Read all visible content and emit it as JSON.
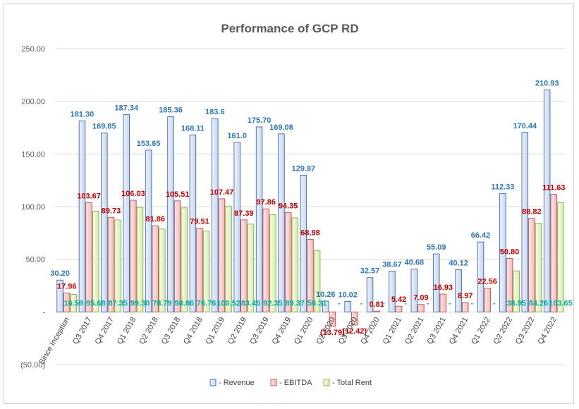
{
  "chart_data": {
    "type": "bar",
    "title": "Performance of GCP RD",
    "xlabel": "",
    "ylabel": "",
    "ylim": [
      -50,
      250
    ],
    "yticks": [
      -50,
      0,
      50,
      100,
      150,
      200,
      250
    ],
    "ytick_labels": [
      "(50.00)",
      "-",
      "50.00",
      "100.00",
      "150.00",
      "200.00",
      "250.00"
    ],
    "grid": true,
    "legend_position": "bottom",
    "categories": [
      "Since Inception",
      "Q3 2017",
      "Q4 2017",
      "Q1 2018",
      "Q2 2018",
      "Q3 2018",
      "Q4 2018",
      "Q1 2019",
      "Q2 2019",
      "Q3 2019",
      "Q4 2019",
      "Q1 2020",
      "Q2 2020",
      "Q3 2020",
      "Q4 2020",
      "Q1 2021",
      "Q2 2021",
      "Q3 2021",
      "Q4 2021",
      "Q1 2022",
      "Q2 2022",
      "Q3 2022",
      "Q4 2022"
    ],
    "series": [
      {
        "name": "- Revenue",
        "color": "#2e75b6",
        "fill_start": "#eef3fb",
        "fill_end": "#c5d6ef",
        "stroke": "#3d68b0",
        "values": [
          30.2,
          181.3,
          169.85,
          187.34,
          153.65,
          185.36,
          168.11,
          183.6,
          161.0,
          175.7,
          169.08,
          129.87,
          10.26,
          10.02,
          32.57,
          38.67,
          40.68,
          55.09,
          40.12,
          66.42,
          112.33,
          170.44,
          210.93
        ],
        "labels": [
          "30.20",
          "181.30",
          "169.85",
          "187.34",
          "153.65",
          "185.36",
          "168.11",
          "183.6",
          "161.0",
          "175.70",
          "169.08",
          "129.87",
          "10.26",
          "10.02",
          "32.57",
          "38.67",
          "40.68",
          "55.09",
          "40.12",
          "66.42",
          "112.33",
          "170.44",
          "210.93"
        ]
      },
      {
        "name": "- EBITDA",
        "color": "#c00000",
        "fill_start": "#fbeaea",
        "fill_end": "#f0b9b9",
        "stroke": "#c0504d",
        "values": [
          17.96,
          103.67,
          89.73,
          106.03,
          81.86,
          105.51,
          79.51,
          107.47,
          87.39,
          97.86,
          94.35,
          68.98,
          -13.79,
          -12.42,
          0.81,
          5.42,
          7.09,
          16.93,
          8.97,
          22.56,
          50.8,
          88.82,
          111.63
        ],
        "labels": [
          "17.96",
          "103.67",
          "89.73",
          "106.03",
          "81.86",
          "105.51",
          "79.51",
          "107.47",
          "87.39",
          "97.86",
          "94.35",
          "68.98",
          "(13.79)",
          "(12.42)",
          "0.81",
          "5.42",
          "7.09",
          "16.93",
          "8.97",
          "22.56",
          "50.80",
          "88.82",
          "111.63"
        ]
      },
      {
        "name": "- Total Rent",
        "color": "#00b0a0",
        "fill_start": "#f7fbe9",
        "fill_end": "#d6ecb0",
        "stroke": "#8aae4a",
        "values": [
          16.59,
          95.68,
          87.35,
          99.3,
          78.79,
          98.86,
          76.76,
          100.52,
          83.45,
          92.35,
          89.37,
          58.31,
          0,
          0,
          0,
          0,
          0,
          0,
          0,
          0,
          38.95,
          84.26,
          103.65
        ],
        "labels": [
          "16.59",
          "95.68",
          "87.35",
          "99.30",
          "78.79",
          "98.86",
          "76.76",
          "100.52",
          "83.45",
          "92.35",
          "89.37",
          "58.31",
          "-",
          "-",
          "-",
          "-",
          "-",
          "-",
          "-",
          "-",
          "38.95",
          "84.26",
          "103.65"
        ]
      }
    ]
  }
}
